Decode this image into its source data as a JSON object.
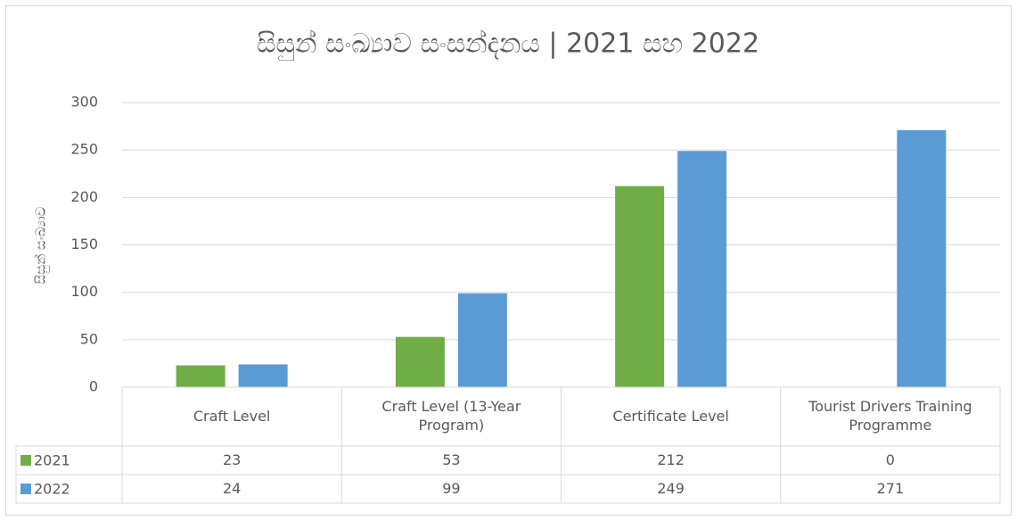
{
  "chart_data": {
    "type": "bar",
    "title": "සිසුන් සංඛ්‍යාව සංසන්දනය  | 2021 සහ 2022",
    "y_label": "සිසුන් සංඛ්‍යාව",
    "categories": [
      "Craft Level",
      "Craft Level (13-Year Program)",
      "Certificate Level",
      "Tourist Drivers Training Programme"
    ],
    "series": [
      {
        "name": "2021",
        "color": "#70ad47",
        "values": [
          23,
          53,
          212,
          0
        ]
      },
      {
        "name": "2022",
        "color": "#5b9bd5",
        "values": [
          24,
          99,
          249,
          271
        ]
      }
    ],
    "ylim": [
      0,
      300
    ],
    "yticks": [
      0,
      50,
      100,
      150,
      200,
      250,
      300
    ],
    "grid": true,
    "data_table": true
  }
}
